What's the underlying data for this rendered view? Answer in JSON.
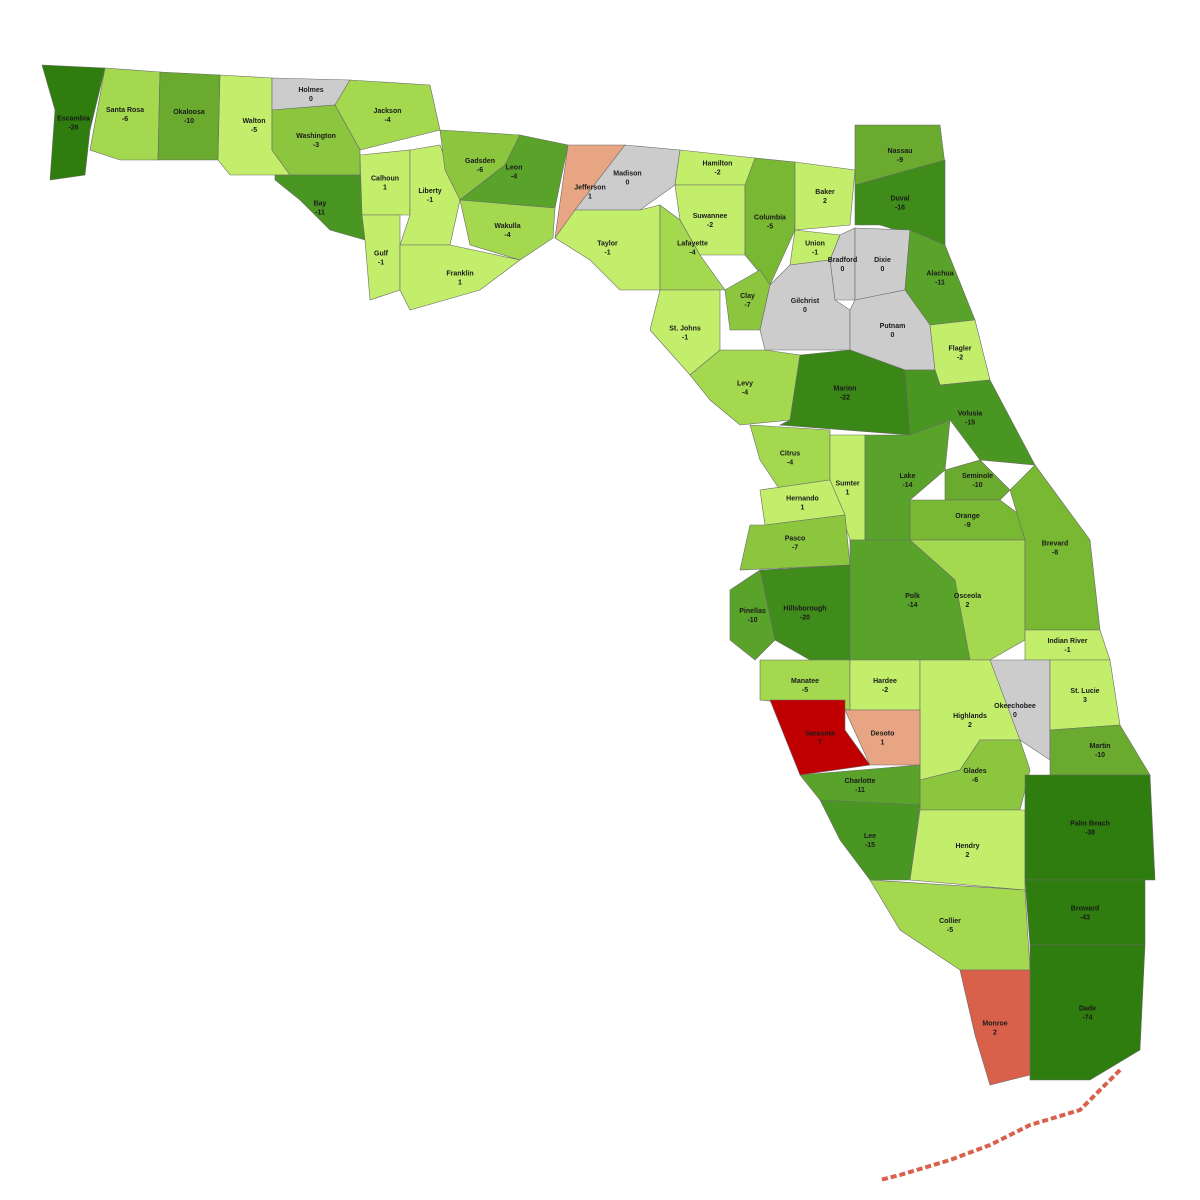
{
  "counties": [
    {
      "name": "Escambia",
      "value": -26,
      "color": "#2e7d0e"
    },
    {
      "name": "Santa Rosa",
      "value": -6,
      "color": "#a3d84f"
    },
    {
      "name": "Okaloosa",
      "value": -10,
      "color": "#6aaa2e"
    },
    {
      "name": "Walton",
      "value": -5,
      "color": "#c2ee6b"
    },
    {
      "name": "Holmes",
      "value": 0,
      "color": "#cccccc"
    },
    {
      "name": "Jackson",
      "value": -4,
      "color": "#a3d84f"
    },
    {
      "name": "Washington",
      "value": -3,
      "color": "#8cc63f"
    },
    {
      "name": "Bay",
      "value": -11,
      "color": "#4a9622"
    },
    {
      "name": "Calhoun",
      "value": 1,
      "color": "#c2ee6b"
    },
    {
      "name": "Liberty",
      "value": -1,
      "color": "#c2ee6b"
    },
    {
      "name": "Gulf",
      "value": -1,
      "color": "#c2ee6b"
    },
    {
      "name": "Franklin",
      "value": 1,
      "color": "#c2ee6b"
    },
    {
      "name": "Gadsden",
      "value": -6,
      "color": "#8cc63f"
    },
    {
      "name": "Leon",
      "value": -4,
      "color": "#5aa32a"
    },
    {
      "name": "Wakulla",
      "value": -4,
      "color": "#a3d84f"
    },
    {
      "name": "Jefferson",
      "value": 1,
      "color": "#e8a583"
    },
    {
      "name": "Madison",
      "value": 0,
      "color": "#cccccc"
    },
    {
      "name": "Taylor",
      "value": -1,
      "color": "#c2ee6b"
    },
    {
      "name": "Hamilton",
      "value": -2,
      "color": "#c2ee6b"
    },
    {
      "name": "Suwannee",
      "value": -2,
      "color": "#c2ee6b"
    },
    {
      "name": "Lafayette",
      "value": -4,
      "color": "#a3d84f"
    },
    {
      "name": "Columbia",
      "value": -5,
      "color": "#78b833"
    },
    {
      "name": "Baker",
      "value": 2,
      "color": "#c2ee6b"
    },
    {
      "name": "Nassau",
      "value": -9,
      "color": "#6aaa2e"
    },
    {
      "name": "Duval",
      "value": -16,
      "color": "#3f8c1a"
    },
    {
      "name": "Union",
      "value": -1,
      "color": "#c2ee6b"
    },
    {
      "name": "Bradford",
      "value": 0,
      "color": "#cccccc"
    },
    {
      "name": "Clay",
      "value": -7,
      "color": "#8cc63f"
    },
    {
      "name": "St. Johns",
      "value": -1,
      "color": "#c2ee6b"
    },
    {
      "name": "Gilchrist",
      "value": 0,
      "color": "#cccccc"
    },
    {
      "name": "Dixie",
      "value": 0,
      "color": "#cccccc"
    },
    {
      "name": "Alachua",
      "value": -11,
      "color": "#5aa32a"
    },
    {
      "name": "Putnam",
      "value": 0,
      "color": "#cccccc"
    },
    {
      "name": "Flagler",
      "value": -2,
      "color": "#c2ee6b"
    },
    {
      "name": "Levy",
      "value": -4,
      "color": "#a3d84f"
    },
    {
      "name": "Marion",
      "value": -22,
      "color": "#3a8616"
    },
    {
      "name": "Volusia",
      "value": -15,
      "color": "#4a9622"
    },
    {
      "name": "Citrus",
      "value": -4,
      "color": "#a3d84f"
    },
    {
      "name": "Sumter",
      "value": 1,
      "color": "#c2ee6b"
    },
    {
      "name": "Lake",
      "value": -14,
      "color": "#5aa32a"
    },
    {
      "name": "Seminole",
      "value": -10,
      "color": "#6aaa2e"
    },
    {
      "name": "Hernando",
      "value": 1,
      "color": "#c2ee6b"
    },
    {
      "name": "Orange",
      "value": -9,
      "color": "#78b833"
    },
    {
      "name": "Pasco",
      "value": -7,
      "color": "#8cc63f"
    },
    {
      "name": "Hillsborough",
      "value": -20,
      "color": "#3f8c1a"
    },
    {
      "name": "Pinellas",
      "value": -10,
      "color": "#5aa32a"
    },
    {
      "name": "Polk",
      "value": -14,
      "color": "#5aa32a"
    },
    {
      "name": "Osceola",
      "value": 2,
      "color": "#a3d84f"
    },
    {
      "name": "Brevard",
      "value": -8,
      "color": "#78b833"
    },
    {
      "name": "Indian River",
      "value": -1,
      "color": "#c2ee6b"
    },
    {
      "name": "Okeechobee",
      "value": 0,
      "color": "#cccccc"
    },
    {
      "name": "St. Lucie",
      "value": 3,
      "color": "#c2ee6b"
    },
    {
      "name": "Manatee",
      "value": -5,
      "color": "#a3d84f"
    },
    {
      "name": "Hardee",
      "value": -2,
      "color": "#c2ee6b"
    },
    {
      "name": "Highlands",
      "value": 2,
      "color": "#c2ee6b"
    },
    {
      "name": "Sarasota",
      "value": 7,
      "color": "#c00000"
    },
    {
      "name": "Desoto",
      "value": 1,
      "color": "#e8a583"
    },
    {
      "name": "Martin",
      "value": -10,
      "color": "#6aaa2e"
    },
    {
      "name": "Glades",
      "value": -6,
      "color": "#8cc63f"
    },
    {
      "name": "Charlotte",
      "value": -11,
      "color": "#5aa32a"
    },
    {
      "name": "Lee",
      "value": -15,
      "color": "#4a9622"
    },
    {
      "name": "Hendry",
      "value": 2,
      "color": "#c2ee6b"
    },
    {
      "name": "Palm Beach",
      "value": -38,
      "color": "#2e7d0e"
    },
    {
      "name": "Collier",
      "value": -5,
      "color": "#a3d84f"
    },
    {
      "name": "Broward",
      "value": -43,
      "color": "#2e7d0e"
    },
    {
      "name": "Dade",
      "value": -74,
      "color": "#2e7d0e"
    },
    {
      "name": "Monroe",
      "value": 2,
      "color": "#d9604a"
    }
  ]
}
